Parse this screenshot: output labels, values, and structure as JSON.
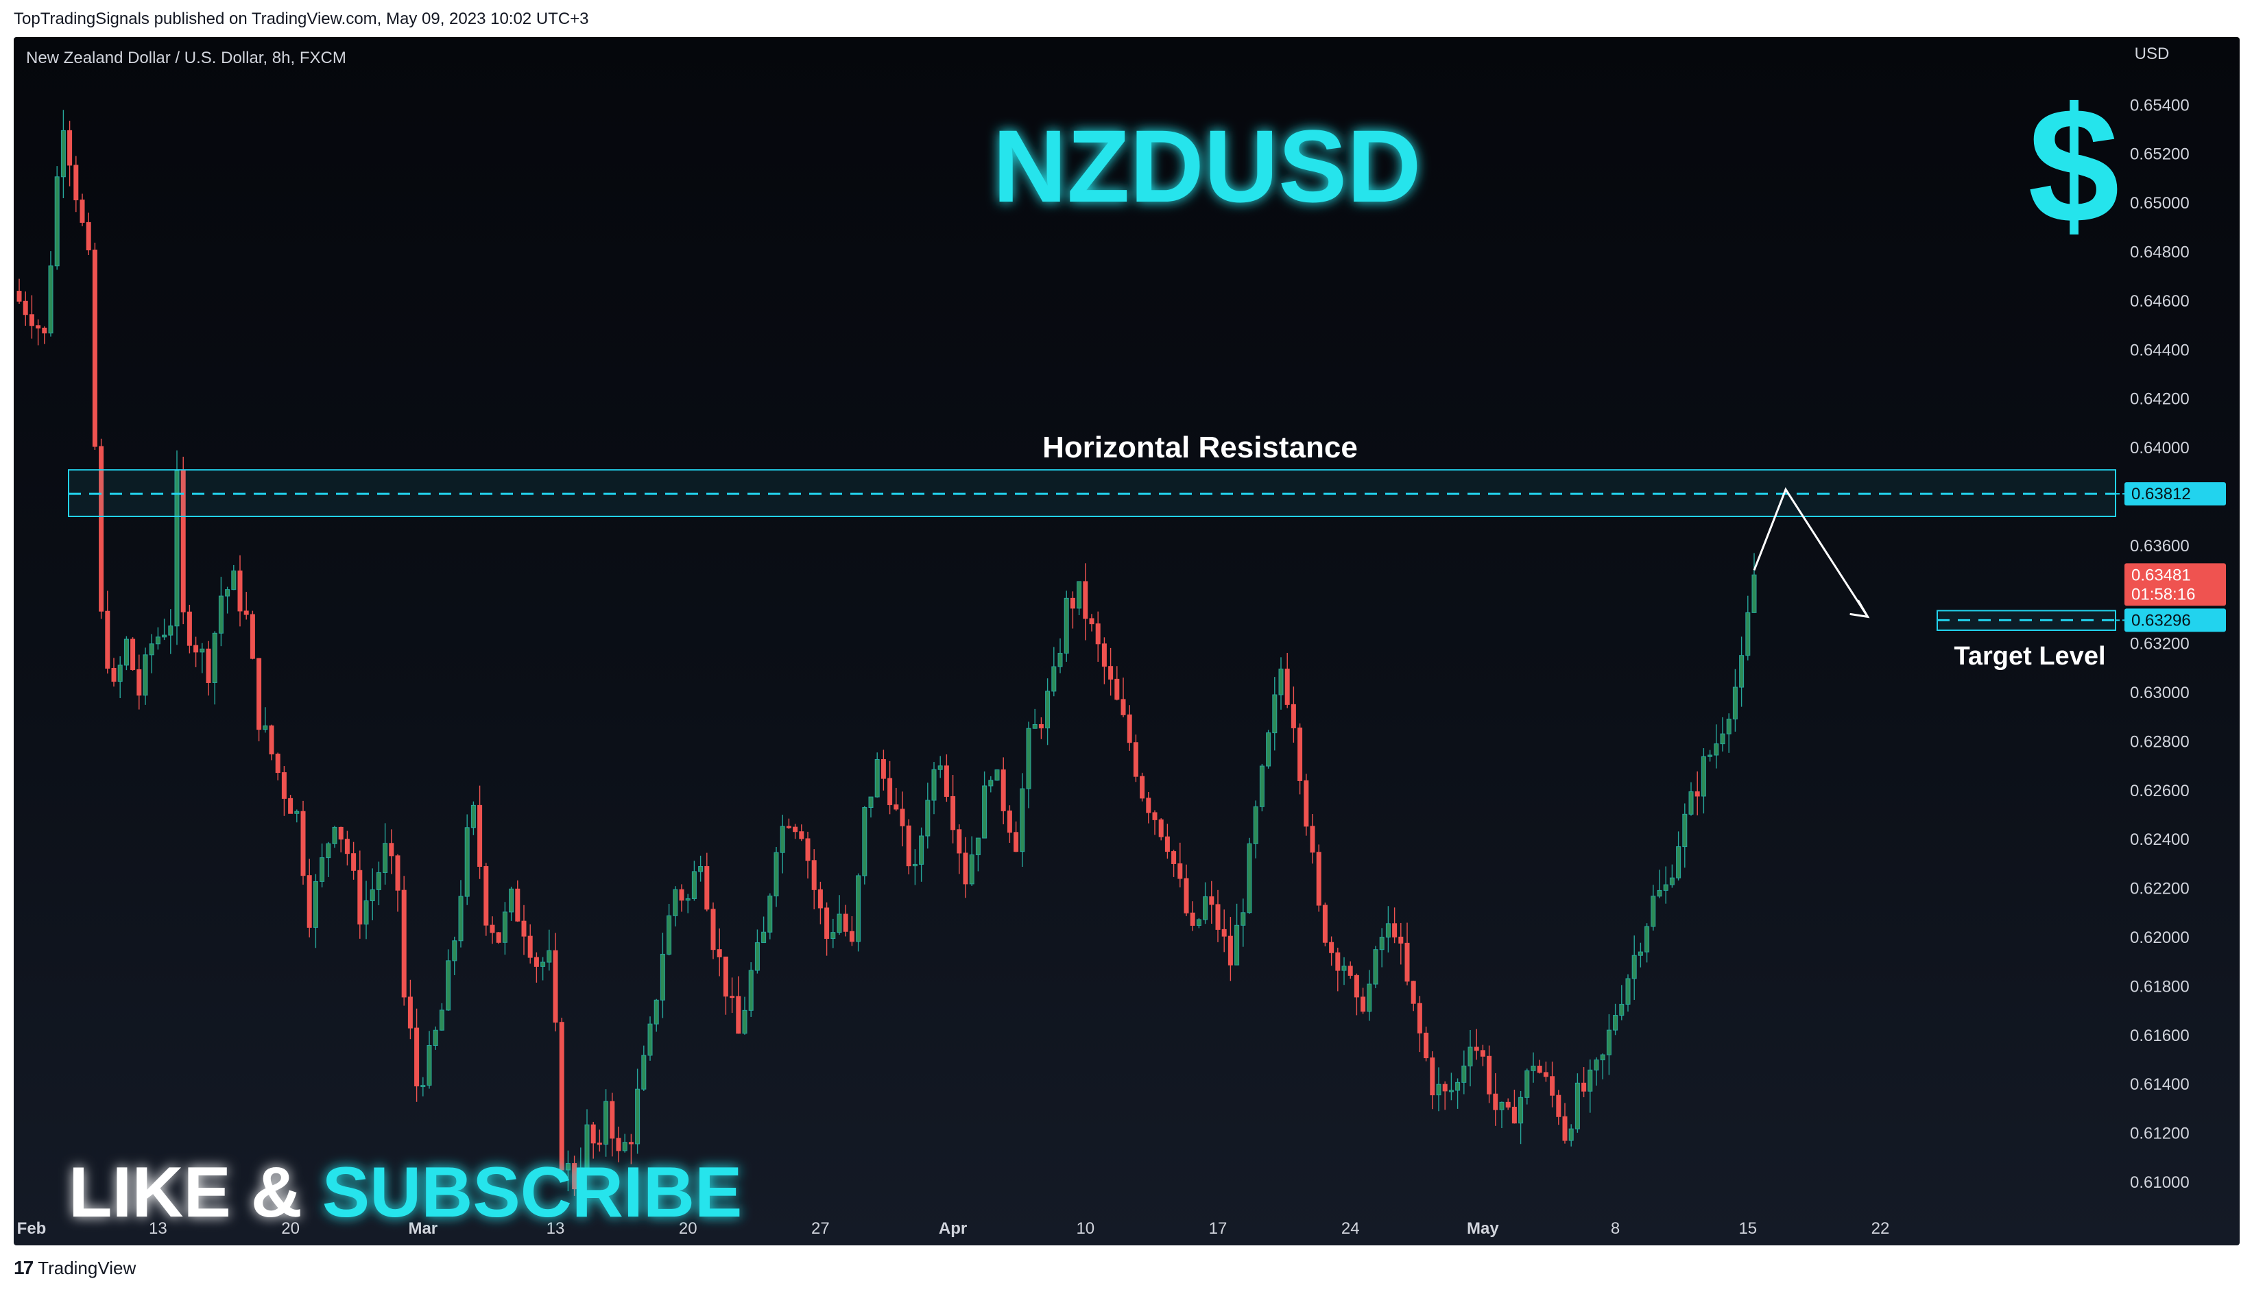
{
  "publisher_line": "TopTradingSignals published on TradingView.com, May 09, 2023 10:02 UTC+3",
  "footer_brand": "TradingView",
  "footer_icon": "tradingview-logo-icon",
  "colors": {
    "up": "#26a69a",
    "up_fill": "#2e8b57",
    "down": "#ef5350",
    "cyan": "#25e4ec",
    "resistance_line": "#22d3ee",
    "price_badge": "#ef5350",
    "text": "#d1d4dc"
  },
  "chart_data": {
    "type": "candlestick",
    "symbol_label": "New Zealand Dollar / U.S. Dollar, 8h, FXCM",
    "title": "NZDUSD",
    "currency": "USD",
    "dollar_glyph": "$",
    "y_ticks": [
      "0.65400",
      "0.65200",
      "0.65000",
      "0.64800",
      "0.64600",
      "0.64400",
      "0.64200",
      "0.64000",
      "0.63800",
      "0.63600",
      "0.63400",
      "0.63200",
      "0.63000",
      "0.62800",
      "0.62600",
      "0.62400",
      "0.62200",
      "0.62000",
      "0.61800",
      "0.61600",
      "0.61400",
      "0.61200",
      "0.61000"
    ],
    "y_range": [
      0.6093,
      0.6551
    ],
    "x_tick_labels": [
      {
        "label": "Feb",
        "bold": true,
        "bar": 0
      },
      {
        "label": "13",
        "bold": false,
        "bar": 22
      },
      {
        "label": "20",
        "bold": false,
        "bar": 43
      },
      {
        "label": "Mar",
        "bold": true,
        "bar": 64
      },
      {
        "label": "13",
        "bold": false,
        "bar": 85
      },
      {
        "label": "20",
        "bold": false,
        "bar": 106
      },
      {
        "label": "27",
        "bold": false,
        "bar": 127
      },
      {
        "label": "Apr",
        "bold": true,
        "bar": 148
      },
      {
        "label": "10",
        "bold": false,
        "bar": 169
      },
      {
        "label": "17",
        "bold": false,
        "bar": 190
      },
      {
        "label": "24",
        "bold": false,
        "bar": 211
      },
      {
        "label": "May",
        "bold": true,
        "bar": 232
      },
      {
        "label": "8",
        "bold": false,
        "bar": 253
      },
      {
        "label": "15",
        "bold": false,
        "bar": 274
      },
      {
        "label": "22",
        "bold": false,
        "bar": 295
      }
    ],
    "close_path": [
      [
        0,
        0.646
      ],
      [
        2,
        0.6455
      ],
      [
        4,
        0.6445
      ],
      [
        6,
        0.651
      ],
      [
        7,
        0.6535
      ],
      [
        9,
        0.6505
      ],
      [
        11,
        0.6475
      ],
      [
        12,
        0.64
      ],
      [
        13,
        0.633
      ],
      [
        15,
        0.63
      ],
      [
        17,
        0.632
      ],
      [
        19,
        0.63
      ],
      [
        21,
        0.632
      ],
      [
        24,
        0.633
      ],
      [
        25,
        0.6385
      ],
      [
        26,
        0.633
      ],
      [
        28,
        0.632
      ],
      [
        30,
        0.631
      ],
      [
        32,
        0.634
      ],
      [
        34,
        0.6345
      ],
      [
        36,
        0.633
      ],
      [
        38,
        0.629
      ],
      [
        40,
        0.6275
      ],
      [
        42,
        0.626
      ],
      [
        44,
        0.625
      ],
      [
        46,
        0.621
      ],
      [
        48,
        0.623
      ],
      [
        50,
        0.625
      ],
      [
        52,
        0.6235
      ],
      [
        54,
        0.621
      ],
      [
        56,
        0.622
      ],
      [
        58,
        0.6235
      ],
      [
        60,
        0.622
      ],
      [
        61,
        0.6175
      ],
      [
        62,
        0.616
      ],
      [
        63,
        0.614
      ],
      [
        65,
        0.615
      ],
      [
        67,
        0.617
      ],
      [
        69,
        0.62
      ],
      [
        71,
        0.624
      ],
      [
        72,
        0.625
      ],
      [
        74,
        0.621
      ],
      [
        76,
        0.62
      ],
      [
        78,
        0.6215
      ],
      [
        80,
        0.6205
      ],
      [
        82,
        0.619
      ],
      [
        84,
        0.619
      ],
      [
        85,
        0.616
      ],
      [
        86,
        0.611
      ],
      [
        88,
        0.61
      ],
      [
        90,
        0.612
      ],
      [
        92,
        0.611
      ],
      [
        93,
        0.6135
      ],
      [
        95,
        0.611
      ],
      [
        97,
        0.612
      ],
      [
        98,
        0.6135
      ],
      [
        100,
        0.616
      ],
      [
        102,
        0.6195
      ],
      [
        104,
        0.622
      ],
      [
        106,
        0.6215
      ],
      [
        108,
        0.6235
      ],
      [
        110,
        0.62
      ],
      [
        112,
        0.618
      ],
      [
        114,
        0.616
      ],
      [
        116,
        0.6185
      ],
      [
        118,
        0.62
      ],
      [
        120,
        0.624
      ],
      [
        122,
        0.625
      ],
      [
        124,
        0.6245
      ],
      [
        126,
        0.622
      ],
      [
        128,
        0.62
      ],
      [
        130,
        0.621
      ],
      [
        132,
        0.6195
      ],
      [
        134,
        0.625
      ],
      [
        136,
        0.627
      ],
      [
        138,
        0.626
      ],
      [
        140,
        0.624
      ],
      [
        142,
        0.6225
      ],
      [
        144,
        0.626
      ],
      [
        146,
        0.6275
      ],
      [
        148,
        0.625
      ],
      [
        150,
        0.6225
      ],
      [
        152,
        0.6245
      ],
      [
        154,
        0.627
      ],
      [
        156,
        0.6255
      ],
      [
        158,
        0.624
      ],
      [
        160,
        0.628
      ],
      [
        162,
        0.629
      ],
      [
        164,
        0.6305
      ],
      [
        166,
        0.6335
      ],
      [
        168,
        0.634
      ],
      [
        170,
        0.6325
      ],
      [
        172,
        0.631
      ],
      [
        174,
        0.6295
      ],
      [
        176,
        0.628
      ],
      [
        178,
        0.626
      ],
      [
        180,
        0.625
      ],
      [
        182,
        0.624
      ],
      [
        184,
        0.622
      ],
      [
        186,
        0.62
      ],
      [
        188,
        0.6215
      ],
      [
        190,
        0.6205
      ],
      [
        192,
        0.619
      ],
      [
        194,
        0.6215
      ],
      [
        196,
        0.625
      ],
      [
        198,
        0.628
      ],
      [
        200,
        0.631
      ],
      [
        202,
        0.629
      ],
      [
        204,
        0.625
      ],
      [
        206,
        0.621
      ],
      [
        208,
        0.6195
      ],
      [
        210,
        0.619
      ],
      [
        212,
        0.617
      ],
      [
        214,
        0.618
      ],
      [
        216,
        0.62
      ],
      [
        218,
        0.6205
      ],
      [
        220,
        0.618
      ],
      [
        222,
        0.616
      ],
      [
        224,
        0.614
      ],
      [
        226,
        0.6135
      ],
      [
        228,
        0.614
      ],
      [
        230,
        0.616
      ],
      [
        232,
        0.615
      ],
      [
        234,
        0.613
      ],
      [
        236,
        0.6125
      ],
      [
        238,
        0.6135
      ],
      [
        240,
        0.615
      ],
      [
        242,
        0.614
      ],
      [
        244,
        0.613
      ],
      [
        245,
        0.612
      ],
      [
        247,
        0.6135
      ],
      [
        249,
        0.614
      ],
      [
        251,
        0.615
      ],
      [
        253,
        0.617
      ],
      [
        255,
        0.6185
      ],
      [
        257,
        0.62
      ],
      [
        259,
        0.6215
      ],
      [
        261,
        0.622
      ],
      [
        263,
        0.624
      ],
      [
        265,
        0.6255
      ],
      [
        267,
        0.627
      ],
      [
        269,
        0.628
      ],
      [
        271,
        0.6295
      ],
      [
        273,
        0.631
      ],
      [
        275,
        0.6348
      ]
    ],
    "last_price": "0.63481",
    "countdown": "01:58:16",
    "resistance_zone": {
      "low": 0.6372,
      "high": 0.6391,
      "level": 0.63812,
      "level_label": "0.63812",
      "label": "Horizontal Resistance"
    },
    "target_zone": {
      "low": 0.63255,
      "high": 0.63335,
      "level": 0.63296,
      "level_label": "0.63296",
      "label": "Target Level"
    },
    "projection": [
      [
        275,
        0.635
      ],
      [
        280,
        0.6383
      ],
      [
        293,
        0.6331
      ]
    ],
    "promo_text": {
      "part1": "LIKE & ",
      "part2": "SUBSCRIBE"
    }
  }
}
